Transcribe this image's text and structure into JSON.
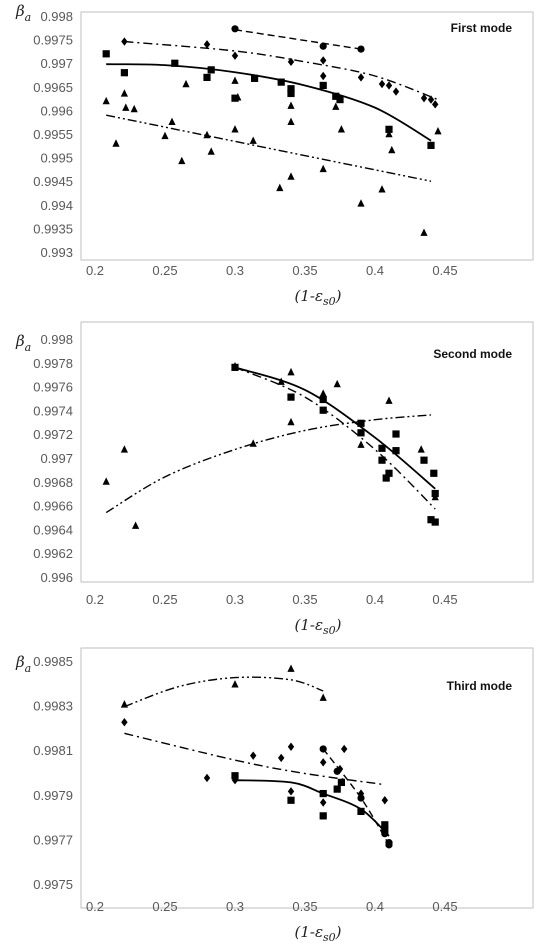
{
  "axis_labels": {
    "y_main": "β",
    "y_sub": "a",
    "x": "(1-ε",
    "x_sub": "s0",
    "x_close": ")"
  },
  "colors": {
    "marker": "#000000",
    "frame": "#bfbfbf",
    "tick": "#595959"
  },
  "chart_data": [
    {
      "type": "scatter",
      "title": "First mode",
      "xlim": [
        0.2,
        0.45
      ],
      "ylim": [
        0.993,
        0.998
      ],
      "x_ticks": [
        "0.2",
        "0.25",
        "0.3",
        "0.35",
        "0.4",
        "0.45"
      ],
      "y_ticks": [
        "0.993",
        "0.9935",
        "0.994",
        "0.9945",
        "0.995",
        "0.9955",
        "0.996",
        "0.9965",
        "0.997",
        "0.9975",
        "0.998"
      ],
      "grid": false,
      "series": [
        {
          "marker": "circle",
          "points": [
            [
              0.3,
              0.99775
            ],
            [
              0.363,
              0.99738
            ],
            [
              0.39,
              0.99732
            ]
          ]
        },
        {
          "marker": "diamond",
          "points": [
            [
              0.221,
              0.99748
            ],
            [
              0.28,
              0.99742
            ],
            [
              0.3,
              0.99718
            ],
            [
              0.34,
              0.99705
            ],
            [
              0.363,
              0.99708
            ],
            [
              0.363,
              0.99675
            ],
            [
              0.39,
              0.99672
            ],
            [
              0.405,
              0.99658
            ],
            [
              0.41,
              0.99655
            ],
            [
              0.415,
              0.99642
            ],
            [
              0.435,
              0.99628
            ],
            [
              0.44,
              0.99625
            ],
            [
              0.443,
              0.99615
            ]
          ]
        },
        {
          "marker": "square",
          "points": [
            [
              0.208,
              0.99722
            ],
            [
              0.221,
              0.99682
            ],
            [
              0.257,
              0.99702
            ],
            [
              0.28,
              0.99672
            ],
            [
              0.283,
              0.99688
            ],
            [
              0.3,
              0.99628
            ],
            [
              0.314,
              0.9967
            ],
            [
              0.333,
              0.99662
            ],
            [
              0.34,
              0.99648
            ],
            [
              0.34,
              0.99638
            ],
            [
              0.363,
              0.99655
            ],
            [
              0.372,
              0.99632
            ],
            [
              0.375,
              0.99625
            ],
            [
              0.41,
              0.99562
            ],
            [
              0.44,
              0.99528
            ]
          ]
        },
        {
          "marker": "triangle",
          "points": [
            [
              0.208,
              0.99622
            ],
            [
              0.215,
              0.99532
            ],
            [
              0.221,
              0.99638
            ],
            [
              0.222,
              0.99608
            ],
            [
              0.228,
              0.99605
            ],
            [
              0.25,
              0.99548
            ],
            [
              0.255,
              0.99578
            ],
            [
              0.262,
              0.99495
            ],
            [
              0.265,
              0.99658
            ],
            [
              0.28,
              0.9955
            ],
            [
              0.283,
              0.99515
            ],
            [
              0.3,
              0.99665
            ],
            [
              0.3,
              0.99562
            ],
            [
              0.302,
              0.9963
            ],
            [
              0.313,
              0.99538
            ],
            [
              0.332,
              0.99438
            ],
            [
              0.34,
              0.99462
            ],
            [
              0.34,
              0.99578
            ],
            [
              0.34,
              0.99612
            ],
            [
              0.363,
              0.99478
            ],
            [
              0.372,
              0.9961
            ],
            [
              0.376,
              0.99562
            ],
            [
              0.39,
              0.99405
            ],
            [
              0.405,
              0.99435
            ],
            [
              0.41,
              0.99552
            ],
            [
              0.412,
              0.99518
            ],
            [
              0.435,
              0.99343
            ],
            [
              0.445,
              0.99558
            ]
          ]
        }
      ],
      "trendlines": [
        {
          "style": "dashed",
          "points": [
            [
              0.3,
              0.99773
            ],
            [
              0.39,
              0.99732
            ]
          ]
        },
        {
          "style": "dash-dot",
          "points": [
            [
              0.221,
              0.99748
            ],
            [
              0.3,
              0.99728
            ],
            [
              0.35,
              0.99705
            ],
            [
              0.4,
              0.99675
            ],
            [
              0.445,
              0.99625
            ]
          ]
        },
        {
          "style": "solid",
          "points": [
            [
              0.208,
              0.997
            ],
            [
              0.25,
              0.99698
            ],
            [
              0.3,
              0.99683
            ],
            [
              0.35,
              0.99655
            ],
            [
              0.4,
              0.99608
            ],
            [
              0.44,
              0.99538
            ]
          ]
        },
        {
          "style": "dash-dot-dot",
          "points": [
            [
              0.208,
              0.99592
            ],
            [
              0.44,
              0.99452
            ]
          ]
        }
      ]
    },
    {
      "type": "scatter",
      "title": "Second mode",
      "xlim": [
        0.2,
        0.45
      ],
      "ylim": [
        0.996,
        0.998
      ],
      "x_ticks": [
        "0.2",
        "0.25",
        "0.3",
        "0.35",
        "0.4",
        "0.45"
      ],
      "y_ticks": [
        "0.996",
        "0.9962",
        "0.9964",
        "0.9966",
        "0.9968",
        "0.997",
        "0.9972",
        "0.9974",
        "0.9976",
        "0.9978",
        "0.998"
      ],
      "grid": false,
      "series": [
        {
          "marker": "square",
          "points": [
            [
              0.3,
              0.99777
            ],
            [
              0.34,
              0.99752
            ],
            [
              0.363,
              0.9975
            ],
            [
              0.363,
              0.99741
            ],
            [
              0.39,
              0.9973
            ],
            [
              0.39,
              0.99722
            ],
            [
              0.405,
              0.99709
            ],
            [
              0.405,
              0.99699
            ],
            [
              0.408,
              0.99684
            ],
            [
              0.41,
              0.99688
            ],
            [
              0.415,
              0.99721
            ],
            [
              0.415,
              0.99707
            ],
            [
              0.435,
              0.99699
            ],
            [
              0.44,
              0.99649
            ],
            [
              0.442,
              0.99688
            ],
            [
              0.443,
              0.99671
            ],
            [
              0.443,
              0.99647
            ]
          ]
        },
        {
          "marker": "triangle",
          "points": [
            [
              0.208,
              0.99681
            ],
            [
              0.221,
              0.99708
            ],
            [
              0.229,
              0.99644
            ],
            [
              0.3,
              0.99778
            ],
            [
              0.313,
              0.99713
            ],
            [
              0.333,
              0.99765
            ],
            [
              0.34,
              0.99773
            ],
            [
              0.34,
              0.99731
            ],
            [
              0.363,
              0.99755
            ],
            [
              0.373,
              0.99763
            ],
            [
              0.39,
              0.99712
            ],
            [
              0.41,
              0.99749
            ],
            [
              0.433,
              0.99708
            ],
            [
              0.443,
              0.99668
            ]
          ]
        }
      ],
      "trendlines": [
        {
          "style": "solid",
          "points": [
            [
              0.3,
              0.99777
            ],
            [
              0.35,
              0.99758
            ],
            [
              0.4,
              0.99718
            ],
            [
              0.443,
              0.99675
            ]
          ]
        },
        {
          "style": "dash-dot",
          "points": [
            [
              0.3,
              0.99777
            ],
            [
              0.35,
              0.99752
            ],
            [
              0.4,
              0.99708
            ],
            [
              0.443,
              0.99658
            ]
          ]
        },
        {
          "style": "dash-dot-dot",
          "points": [
            [
              0.208,
              0.99655
            ],
            [
              0.25,
              0.99685
            ],
            [
              0.3,
              0.99708
            ],
            [
              0.35,
              0.99724
            ],
            [
              0.4,
              0.99733
            ],
            [
              0.44,
              0.99737
            ]
          ]
        }
      ]
    },
    {
      "type": "scatter",
      "title": "Third mode",
      "xlim": [
        0.2,
        0.45
      ],
      "ylim": [
        0.9975,
        0.9985
      ],
      "x_ticks": [
        "0.2",
        "0.25",
        "0.3",
        "0.35",
        "0.4",
        "0.45"
      ],
      "y_ticks": [
        "0.9975",
        "0.9977",
        "0.9979",
        "0.9981",
        "0.9983",
        "0.9985"
      ],
      "grid": false,
      "series": [
        {
          "marker": "triangle",
          "points": [
            [
              0.221,
              0.99831
            ],
            [
              0.3,
              0.9984
            ],
            [
              0.34,
              0.99847
            ],
            [
              0.363,
              0.99834
            ]
          ]
        },
        {
          "marker": "diamond",
          "points": [
            [
              0.221,
              0.99823
            ],
            [
              0.28,
              0.99798
            ],
            [
              0.3,
              0.99797
            ],
            [
              0.313,
              0.99808
            ],
            [
              0.333,
              0.99807
            ],
            [
              0.34,
              0.99812
            ],
            [
              0.34,
              0.99792
            ],
            [
              0.363,
              0.99805
            ],
            [
              0.363,
              0.99787
            ],
            [
              0.375,
              0.99802
            ],
            [
              0.378,
              0.99811
            ],
            [
              0.39,
              0.99791
            ],
            [
              0.407,
              0.99788
            ]
          ]
        },
        {
          "marker": "square",
          "points": [
            [
              0.3,
              0.99799
            ],
            [
              0.34,
              0.99788
            ],
            [
              0.363,
              0.99791
            ],
            [
              0.363,
              0.99781
            ],
            [
              0.373,
              0.99793
            ],
            [
              0.376,
              0.99796
            ],
            [
              0.39,
              0.99783
            ],
            [
              0.407,
              0.99777
            ],
            [
              0.407,
              0.99775
            ]
          ]
        },
        {
          "marker": "circle",
          "points": [
            [
              0.363,
              0.99811
            ],
            [
              0.373,
              0.99801
            ],
            [
              0.39,
              0.99789
            ],
            [
              0.407,
              0.99773
            ],
            [
              0.41,
              0.99768
            ],
            [
              0.41,
              0.99769
            ]
          ]
        }
      ],
      "trendlines": [
        {
          "style": "dash-dot-dot",
          "points": [
            [
              0.221,
              0.9983
            ],
            [
              0.26,
              0.99839
            ],
            [
              0.3,
              0.99843
            ],
            [
              0.34,
              0.99842
            ],
            [
              0.363,
              0.99837
            ]
          ]
        },
        {
          "style": "dash-dot",
          "points": [
            [
              0.221,
              0.99818
            ],
            [
              0.3,
              0.99806
            ],
            [
              0.35,
              0.998
            ],
            [
              0.407,
              0.99795
            ]
          ]
        },
        {
          "style": "solid",
          "points": [
            [
              0.3,
              0.99797
            ],
            [
              0.34,
              0.99796
            ],
            [
              0.363,
              0.99791
            ],
            [
              0.39,
              0.99784
            ],
            [
              0.41,
              0.99772
            ]
          ]
        },
        {
          "style": "dashed",
          "points": [
            [
              0.363,
              0.99811
            ],
            [
              0.39,
              0.99789
            ],
            [
              0.41,
              0.99768
            ]
          ]
        }
      ]
    }
  ]
}
